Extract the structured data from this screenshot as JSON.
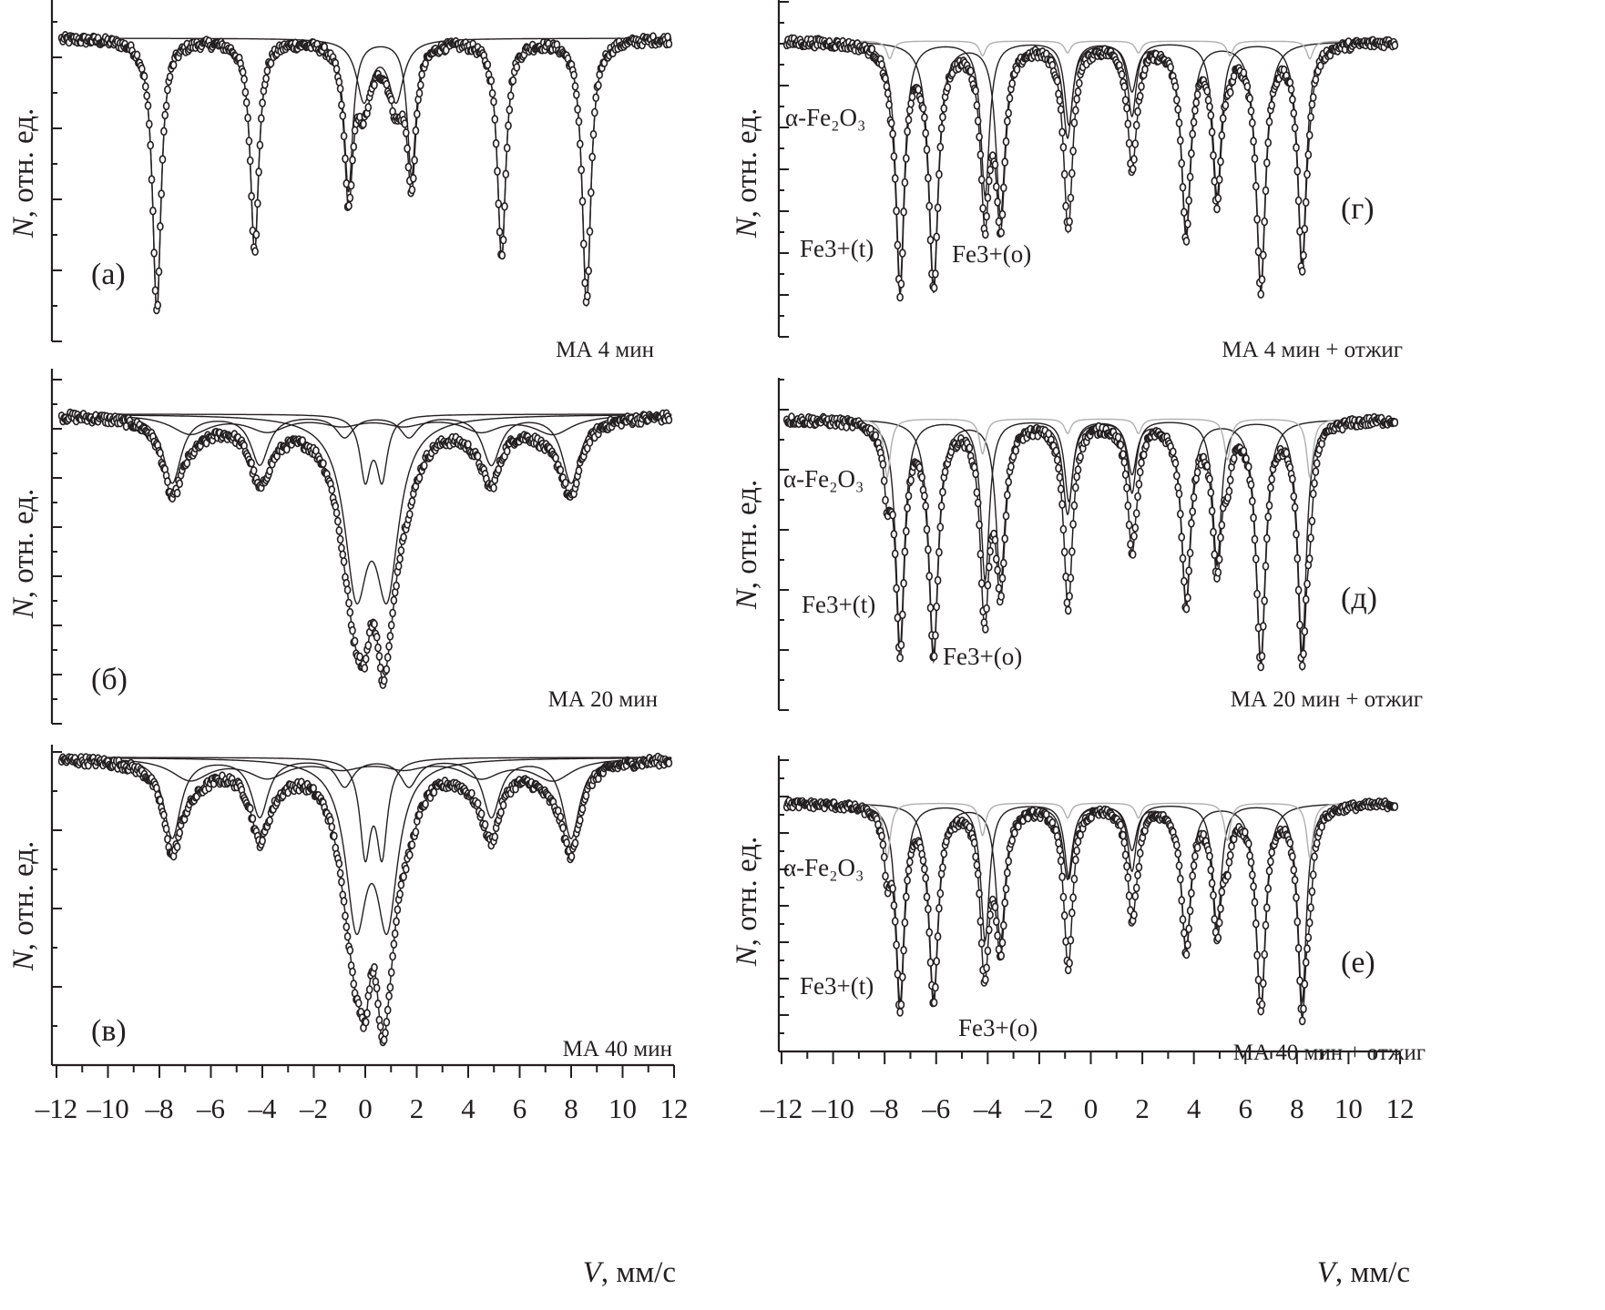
{
  "chart_data": {
    "type": "scatter",
    "title": "",
    "xlabel": {
      "var": "V",
      "unit": ", мм/с"
    },
    "ylabel": {
      "var": "N",
      "unit": ", отн. ед."
    },
    "xlim": [
      -12,
      12
    ],
    "xticks": [
      -12,
      -10,
      -8,
      -6,
      -4,
      -2,
      0,
      2,
      4,
      6,
      8,
      10,
      12
    ],
    "xtick_labels": [
      "–12",
      "–10",
      "–8",
      "–6",
      "–4",
      "–2",
      "0",
      "2",
      "4",
      "6",
      "8",
      "10",
      "12"
    ],
    "baseline": 1.0,
    "panels": [
      {
        "label": "(а)",
        "caption": "МА 4 мин",
        "components": [
          {
            "type": "sextet",
            "lines": [
              -8.1,
              -4.3,
              -0.65,
              1.8,
              5.3,
              8.6
            ],
            "depths": [
              0.9,
              0.7,
              0.5,
              0.45,
              0.72,
              0.88
            ],
            "hwhm": 0.2,
            "color": "#231f20"
          },
          {
            "type": "doublet",
            "lines": [
              -0.05,
              1.2
            ],
            "depths": [
              0.2,
              0.2
            ],
            "hwhm": 0.35,
            "color": "#231f20"
          }
        ]
      },
      {
        "label": "(б)",
        "caption": "МА 20 мин",
        "components": [
          {
            "type": "sextet",
            "lines": [
              -7.5,
              -4.1,
              -0.8,
              1.7,
              4.9,
              8.0
            ],
            "depths": [
              0.22,
              0.16,
              0.07,
              0.07,
              0.16,
              0.22
            ],
            "hwhm": 0.42,
            "color": "#231f20"
          },
          {
            "type": "sextet",
            "lines": [
              -6.8,
              -3.8,
              -0.9,
              1.5,
              4.5,
              7.3
            ],
            "depths": [
              0.06,
              0.05,
              0.03,
              0.03,
              0.05,
              0.06
            ],
            "hwhm": 0.9,
            "color": "#231f20"
          },
          {
            "type": "doublet",
            "lines": [
              -0.35,
              0.85
            ],
            "depths": [
              0.52,
              0.52
            ],
            "hwhm": 0.55,
            "color": "#231f20"
          },
          {
            "type": "doublet",
            "lines": [
              0.0,
              0.65
            ],
            "depths": [
              0.2,
              0.2
            ],
            "hwhm": 0.25,
            "color": "#231f20"
          }
        ]
      },
      {
        "label": "(в)",
        "caption": "МА 40 мин",
        "components": [
          {
            "type": "sextet",
            "lines": [
              -7.5,
              -4.1,
              -0.8,
              1.7,
              4.9,
              8.0
            ],
            "depths": [
              0.26,
              0.19,
              0.09,
              0.09,
              0.19,
              0.26
            ],
            "hwhm": 0.4,
            "color": "#231f20"
          },
          {
            "type": "sextet",
            "lines": [
              -6.8,
              -3.8,
              -0.9,
              1.5,
              4.5,
              7.3
            ],
            "depths": [
              0.07,
              0.06,
              0.03,
              0.03,
              0.06,
              0.07
            ],
            "hwhm": 0.9,
            "color": "#231f20"
          },
          {
            "type": "doublet",
            "lines": [
              -0.35,
              0.85
            ],
            "depths": [
              0.5,
              0.5
            ],
            "hwhm": 0.5,
            "color": "#231f20"
          },
          {
            "type": "doublet",
            "lines": [
              0.0,
              0.65
            ],
            "depths": [
              0.3,
              0.3
            ],
            "hwhm": 0.25,
            "color": "#231f20"
          }
        ]
      },
      {
        "label": "(г)",
        "caption": "МА 4 мин + отжиг",
        "annotations": {
          "alpha": "α-Fe₂O₃",
          "t": "Fe3+(t)",
          "o": "Fe3+(o)"
        },
        "components": [
          {
            "type": "sextet",
            "name": "Fe3+(t)",
            "lines": [
              -7.4,
              -4.1,
              -0.85,
              1.6,
              4.9,
              8.2
            ],
            "depths": [
              0.82,
              0.52,
              0.28,
              0.25,
              0.52,
              0.75
            ],
            "hwhm": 0.2,
            "color": "#231f20"
          },
          {
            "type": "sextet",
            "name": "Fe3+(o)",
            "lines": [
              -6.1,
              -3.5,
              -0.9,
              1.6,
              3.7,
              6.6
            ],
            "depths": [
              0.82,
              0.58,
              0.32,
              0.16,
              0.64,
              0.82
            ],
            "hwhm": 0.22,
            "color": "#231f20"
          },
          {
            "type": "sextet",
            "name": "α-Fe₂O₃",
            "lines": [
              -7.8,
              -4.2,
              -0.9,
              1.85,
              5.4,
              8.5
            ],
            "depths": [
              0.06,
              0.05,
              0.04,
              0.04,
              0.05,
              0.06
            ],
            "hwhm": 0.15,
            "color": "#b0b0b0"
          }
        ]
      },
      {
        "label": "(д)",
        "caption": "МА 20 мин + отжиг",
        "annotations": {
          "alpha": "α-Fe₂O₃",
          "t": "Fe3+(t)",
          "o": "Fe3+(o)"
        },
        "components": [
          {
            "type": "sextet",
            "name": "Fe3+(t)",
            "lines": [
              -7.4,
              -4.1,
              -0.85,
              1.6,
              4.9,
              8.2
            ],
            "depths": [
              0.78,
              0.55,
              0.28,
              0.25,
              0.5,
              0.8
            ],
            "hwhm": 0.2,
            "color": "#231f20"
          },
          {
            "type": "sextet",
            "name": "Fe3+(o)",
            "lines": [
              -6.1,
              -3.5,
              -0.9,
              1.6,
              3.7,
              6.6
            ],
            "depths": [
              0.8,
              0.55,
              0.32,
              0.18,
              0.62,
              0.82
            ],
            "hwhm": 0.22,
            "color": "#231f20"
          },
          {
            "type": "sextet",
            "name": "α-Fe₂O₃",
            "lines": [
              -7.9,
              -4.2,
              -0.9,
              1.85,
              5.3,
              8.5
            ],
            "depths": [
              0.2,
              0.12,
              0.05,
              0.05,
              0.14,
              0.2
            ],
            "hwhm": 0.15,
            "color": "#b0b0b0"
          }
        ]
      },
      {
        "label": "(е)",
        "caption": "МА 40 мин + отжиг",
        "annotations": {
          "alpha": "α-Fe₂O₃",
          "t": "Fe3+(t)",
          "o": "Fe3+(o)"
        },
        "components": [
          {
            "type": "sextet",
            "name": "Fe3+(t)",
            "lines": [
              -7.4,
              -4.1,
              -0.85,
              1.6,
              4.9,
              8.2
            ],
            "depths": [
              0.8,
              0.55,
              0.3,
              0.27,
              0.5,
              0.8
            ],
            "hwhm": 0.2,
            "color": "#231f20"
          },
          {
            "type": "sextet",
            "name": "Fe3+(o)",
            "lines": [
              -6.1,
              -3.5,
              -0.9,
              1.6,
              3.7,
              6.6
            ],
            "depths": [
              0.78,
              0.55,
              0.3,
              0.18,
              0.58,
              0.82
            ],
            "hwhm": 0.22,
            "color": "#231f20"
          },
          {
            "type": "sextet",
            "name": "α-Fe₂O₃",
            "lines": [
              -7.9,
              -4.2,
              -0.9,
              1.85,
              5.3,
              8.5
            ],
            "depths": [
              0.22,
              0.13,
              0.06,
              0.06,
              0.15,
              0.22
            ],
            "hwhm": 0.15,
            "color": "#b0b0b0"
          }
        ]
      }
    ]
  }
}
